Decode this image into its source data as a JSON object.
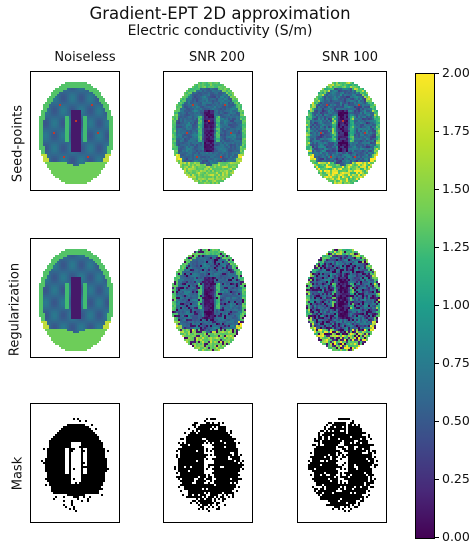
{
  "chart_data": {
    "type": "heatmap",
    "title": "Gradient-EPT 2D approximation",
    "subtitle": "Electric conductivity (S/m)",
    "columns": [
      "Noiseless",
      "SNR 200",
      "SNR 100"
    ],
    "rows": [
      "Seed-points",
      "Regularization",
      "Mask"
    ],
    "colorbar": {
      "colormap": "viridis",
      "range": [
        0.0,
        2.0
      ],
      "ticks": [
        "0.00",
        "0.25",
        "0.50",
        "0.75",
        "1.00",
        "1.25",
        "1.50",
        "1.75",
        "2.00"
      ]
    },
    "mask_colors": [
      "#000000",
      "#ffffff"
    ],
    "seed_point_color": "#c0392b"
  }
}
